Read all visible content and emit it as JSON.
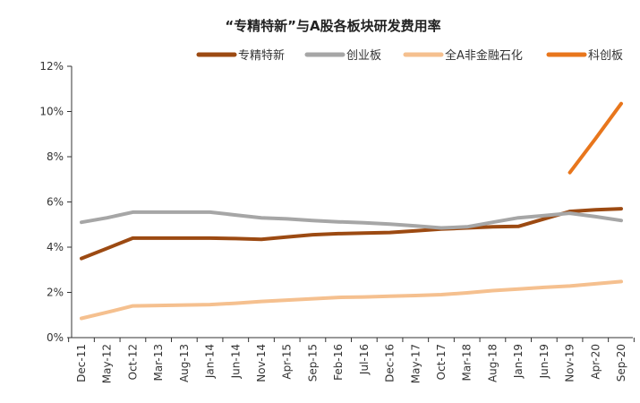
{
  "chart_data": {
    "type": "line",
    "title": "“专精特新”与A股各板块研发费用率",
    "xlabel": "",
    "ylabel": "",
    "ylim": [
      0,
      12
    ],
    "yticks": [
      "0%",
      "2%",
      "4%",
      "6%",
      "8%",
      "10%",
      "12%"
    ],
    "grid": false,
    "legend_position": "top-right",
    "categories": [
      "Dec-11",
      "May-12",
      "Oct-12",
      "Mar-13",
      "Aug-13",
      "Jan-14",
      "Jun-14",
      "Nov-14",
      "Apr-15",
      "Sep-15",
      "Feb-16",
      "Jul-16",
      "Dec-16",
      "May-17",
      "Oct-17",
      "Mar-18",
      "Aug-18",
      "Jan-19",
      "Jun-19",
      "Nov-19",
      "Apr-20",
      "Sep-20"
    ],
    "series": [
      {
        "name": "专精特新",
        "color": "#9c4a12",
        "values": [
          3.5,
          3.95,
          4.4,
          4.4,
          4.4,
          4.4,
          4.38,
          4.35,
          4.45,
          4.55,
          4.6,
          4.62,
          4.65,
          4.72,
          4.8,
          4.85,
          4.9,
          4.92,
          5.25,
          5.58,
          5.65,
          5.7
        ]
      },
      {
        "name": "创业板",
        "color": "#a6a6a6",
        "values": [
          5.1,
          5.3,
          5.55,
          5.55,
          5.55,
          5.55,
          5.42,
          5.3,
          5.25,
          5.18,
          5.12,
          5.08,
          5.02,
          4.94,
          4.85,
          4.9,
          5.1,
          5.3,
          5.4,
          5.5,
          5.35,
          5.18
        ]
      },
      {
        "name": "全A非金融石化",
        "color": "#f5c08f",
        "values": [
          0.85,
          1.12,
          1.4,
          1.42,
          1.44,
          1.46,
          1.52,
          1.6,
          1.66,
          1.72,
          1.78,
          1.8,
          1.83,
          1.86,
          1.9,
          1.98,
          2.08,
          2.15,
          2.22,
          2.28,
          2.38,
          2.48
        ]
      },
      {
        "name": "科创板",
        "color": "#e8761c",
        "values": [
          null,
          null,
          null,
          null,
          null,
          null,
          null,
          null,
          null,
          null,
          null,
          null,
          null,
          null,
          null,
          null,
          null,
          null,
          null,
          7.3,
          8.8,
          10.35
        ]
      }
    ]
  }
}
